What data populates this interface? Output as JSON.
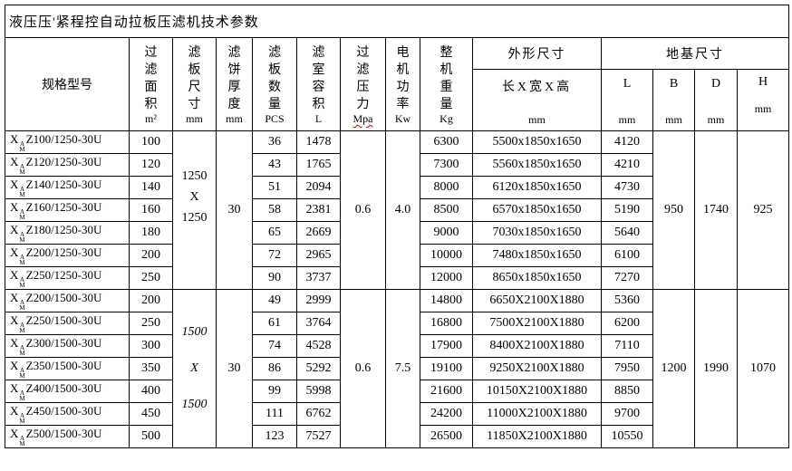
{
  "page_title": "液压压'紧程控自动拉板压滤机技术参数",
  "table": {
    "model_header": "规格型号",
    "model_prefix": {
      "base": "X",
      "sup": "A",
      "sub": "M"
    },
    "spec_headers": [
      {
        "name": "过滤面积",
        "unit": "m²"
      },
      {
        "name": "滤板尺寸",
        "unit": "mm"
      },
      {
        "name": "滤饼厚度",
        "unit": "mm"
      },
      {
        "name": "滤板数量",
        "unit": "PCS"
      },
      {
        "name": "滤室容积",
        "unit": "L"
      },
      {
        "name": "过滤压力",
        "unit": "Mpa"
      },
      {
        "name": "电机功率",
        "unit": "Kw"
      },
      {
        "name": "整机重量",
        "unit": "Kg"
      }
    ],
    "outline_group": {
      "label": "外形尺寸",
      "sub_label": "长X宽X高",
      "unit": "mm"
    },
    "foundation_group": {
      "label": "地基尺寸",
      "columns": [
        {
          "label": "L",
          "unit": "mm"
        },
        {
          "label": "B",
          "unit": "mm"
        },
        {
          "label": "D",
          "unit": "mm"
        },
        {
          "label": "H",
          "unit": "mm"
        }
      ]
    },
    "groups": [
      {
        "plate_size": [
          "1250",
          "X",
          "1250"
        ],
        "italic": false,
        "cake_thickness": "30",
        "pressure": "0.6",
        "power": "4.0",
        "foundation": {
          "B": "950",
          "D": "1740",
          "H": "925"
        },
        "rows": [
          {
            "model": "Z100/1250-30U",
            "area": "100",
            "plates": "36",
            "volume": "1478",
            "weight": "6300",
            "dims": "5500x1850x1650",
            "L": "4120"
          },
          {
            "model": "Z120/1250-30U",
            "area": "120",
            "plates": "43",
            "volume": "1765",
            "weight": "7300",
            "dims": "5560x1850x1650",
            "L": "4210"
          },
          {
            "model": "Z140/1250-30U",
            "area": "140",
            "plates": "51",
            "volume": "2094",
            "weight": "8000",
            "dims": "6120x1850x1650",
            "L": "4730"
          },
          {
            "model": "Z160/1250-30U",
            "area": "160",
            "plates": "58",
            "volume": "2381",
            "weight": "8500",
            "dims": "6570x1850x1650",
            "L": "5190"
          },
          {
            "model": "Z180/1250-30U",
            "area": "180",
            "plates": "65",
            "volume": "2669",
            "weight": "9000",
            "dims": "7030x1850x1650",
            "L": "5640"
          },
          {
            "model": "Z200/1250-30U",
            "area": "200",
            "plates": "72",
            "volume": "2965",
            "weight": "10000",
            "dims": "7480x1850x1650",
            "L": "6100"
          },
          {
            "model": "Z250/1250-30U",
            "area": "250",
            "plates": "90",
            "volume": "3737",
            "weight": "12000",
            "dims": "8650x1850x1650",
            "L": "7270"
          }
        ]
      },
      {
        "plate_size": [
          "1500",
          "X",
          "1500"
        ],
        "italic": true,
        "cake_thickness": "30",
        "pressure": "0.6",
        "power": "7.5",
        "foundation": {
          "B": "1200",
          "D": "1990",
          "H": "1070"
        },
        "rows": [
          {
            "model": "Z200/1500-30U",
            "area": "200",
            "plates": "49",
            "volume": "2999",
            "weight": "14800",
            "dims": "6650X2100X1880",
            "L": "5360"
          },
          {
            "model": "Z250/1500-30U",
            "area": "250",
            "plates": "61",
            "volume": "3764",
            "weight": "16800",
            "dims": "7500X2100X1880",
            "L": "6200"
          },
          {
            "model": "Z300/1500-30U",
            "area": "300",
            "plates": "74",
            "volume": "4528",
            "weight": "17900",
            "dims": "8400X2100X1880",
            "L": "7110"
          },
          {
            "model": "Z350/1500-30U",
            "area": "350",
            "plates": "86",
            "volume": "5292",
            "weight": "19100",
            "dims": "9250X2100X1880",
            "L": "7950"
          },
          {
            "model": "Z400/1500-30U",
            "area": "400",
            "plates": "99",
            "volume": "5998",
            "weight": "21600",
            "dims": "10150X2100X1880",
            "L": "8850"
          },
          {
            "model": "Z450/1500-30U",
            "area": "450",
            "plates": "111",
            "volume": "6762",
            "weight": "24200",
            "dims": "11000X2100X1880",
            "L": "9700"
          },
          {
            "model": "Z500/1500-30U",
            "area": "500",
            "plates": "123",
            "volume": "7527",
            "weight": "26500",
            "dims": "11850X2100X1880",
            "L": "10550"
          }
        ]
      }
    ]
  }
}
